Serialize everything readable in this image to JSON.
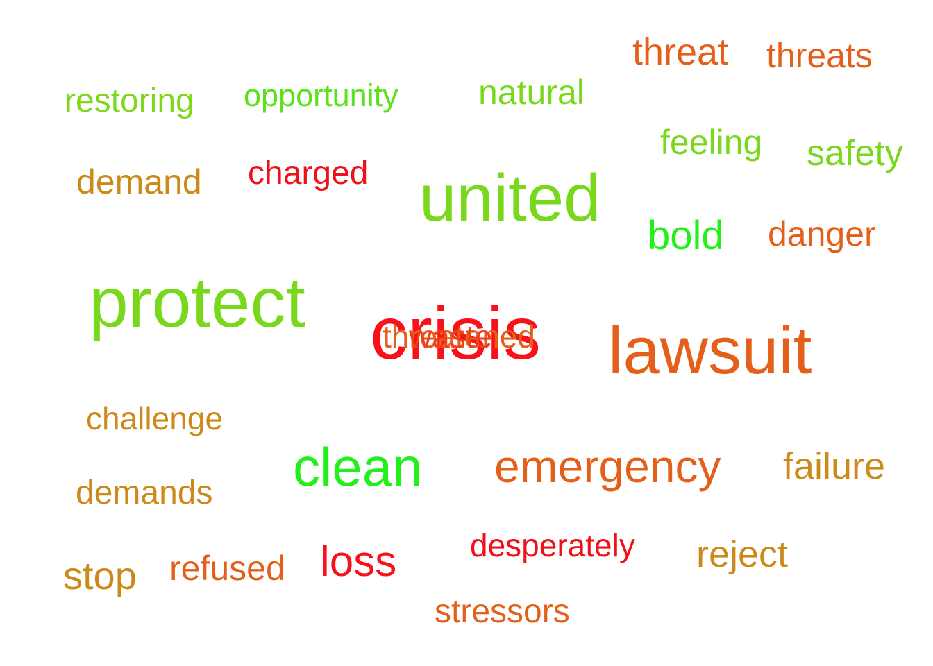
{
  "words": [
    {
      "text": "threat",
      "color": "#e4601a"
    },
    {
      "text": "threats",
      "color": "#e4601a"
    },
    {
      "text": "restoring",
      "color": "#7dd81c"
    },
    {
      "text": "opportunity",
      "color": "#5ae21b"
    },
    {
      "text": "natural",
      "color": "#78d81c"
    },
    {
      "text": "feeling",
      "color": "#78d81c"
    },
    {
      "text": "safety",
      "color": "#78d81c"
    },
    {
      "text": "demand",
      "color": "#cc8a1a"
    },
    {
      "text": "charged",
      "color": "#f0101a"
    },
    {
      "text": "united",
      "color": "#78d81c"
    },
    {
      "text": "bold",
      "color": "#22f01a"
    },
    {
      "text": "danger",
      "color": "#e4601a"
    },
    {
      "text": "protect",
      "color": "#78d81c"
    },
    {
      "text": "crisis",
      "color": "#f8101a"
    },
    {
      "text": "threatened",
      "color": "#e4601a"
    },
    {
      "text": "waste",
      "color": "#f0401a"
    },
    {
      "text": "lawsuit",
      "color": "#e4601a"
    },
    {
      "text": "challenge",
      "color": "#cc8a1a"
    },
    {
      "text": "clean",
      "color": "#22f01a"
    },
    {
      "text": "emergency",
      "color": "#e4601a"
    },
    {
      "text": "failure",
      "color": "#cc8a1a"
    },
    {
      "text": "demands",
      "color": "#cc8a1a"
    },
    {
      "text": "stop",
      "color": "#cc8a1a"
    },
    {
      "text": "refused",
      "color": "#e4601a"
    },
    {
      "text": "loss",
      "color": "#f8101a"
    },
    {
      "text": "desperately",
      "color": "#f0101a"
    },
    {
      "text": "reject",
      "color": "#cc8a1a"
    },
    {
      "text": "stressors",
      "color": "#e4601a"
    }
  ]
}
